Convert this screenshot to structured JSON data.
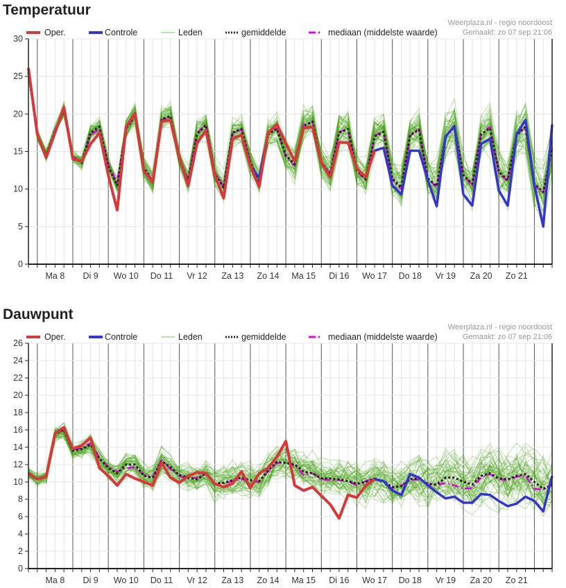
{
  "chart_data": [
    {
      "type": "line",
      "title": "Temperatuur",
      "source": "Weerplaza.nl - regio noordoost",
      "created": "Gemaakt: zo 07 sep 21:06",
      "legend": [
        "Oper.",
        "Controle",
        "Leden",
        "gemiddelde",
        "mediaan (middelste waarde)"
      ],
      "legend_position": "top",
      "ylim": [
        0,
        30
      ],
      "yticks": [
        0,
        5,
        10,
        15,
        20,
        25,
        30
      ],
      "ygrid_step": 5,
      "x_step": "6 uur",
      "day_labels": [
        "Ma 8",
        "Di 9",
        "Wo 10",
        "Do 11",
        "Vr 12",
        "Za 13",
        "Zo 14",
        "Ma 15",
        "Di 16",
        "Wo 17",
        "Do 18",
        "Vr 19",
        "Za 20",
        "Zo 21"
      ],
      "series": [
        {
          "name": "Oper.",
          "color": "#d43a3a",
          "values": [
            26.1,
            17.3,
            14.2,
            17.5,
            20.9,
            14.0,
            13.7,
            16.0,
            17.5,
            11.8,
            7.2,
            18.3,
            20.1,
            12.4,
            10.9,
            19.0,
            19.2,
            14.2,
            10.4,
            16.1,
            17.8,
            11.8,
            8.8,
            16.7,
            17.2,
            13.0,
            10.3,
            17.5,
            18.6,
            16.1,
            13.7,
            18.1,
            18.3,
            13.5,
            11.6,
            16.2,
            16.2,
            12.7,
            11.6,
            15.1
          ]
        },
        {
          "name": "Controle",
          "color": "#3535cc",
          "values": [
            26.1,
            17.3,
            14.2,
            17.5,
            20.9,
            14.0,
            13.7,
            16.0,
            17.5,
            11.8,
            7.2,
            18.3,
            20.1,
            12.4,
            10.9,
            19.0,
            19.2,
            14.2,
            10.4,
            16.1,
            17.8,
            11.8,
            8.8,
            16.7,
            17.2,
            13.0,
            11.5,
            17.5,
            18.6,
            16.1,
            13.7,
            18.1,
            18.3,
            13.5,
            11.6,
            16.2,
            16.2,
            12.7,
            11.6,
            15.1,
            15.5,
            10.5,
            9.3,
            15.1,
            15.1,
            11.2,
            7.7,
            17.0,
            18.4,
            9.3,
            7.8,
            16.0,
            16.7,
            9.8,
            7.8,
            17.3,
            19.2,
            10.5,
            5.0,
            18.6
          ]
        },
        {
          "name": "gemiddelde",
          "color": "#222222",
          "values": [
            25.5,
            17.2,
            14.5,
            17.8,
            20.5,
            14.2,
            13.5,
            17.5,
            18.3,
            13.0,
            10.5,
            18.0,
            19.8,
            12.8,
            11.0,
            19.3,
            19.7,
            14.0,
            11.0,
            17.3,
            18.5,
            12.0,
            10.2,
            17.5,
            18.0,
            13.5,
            11.0,
            17.3,
            18.0,
            14.5,
            13.3,
            18.4,
            19.0,
            13.5,
            12.0,
            17.5,
            18.0,
            12.5,
            11.3,
            17.0,
            17.6,
            11.4,
            10.2,
            17.2,
            17.9,
            11.4,
            10.4,
            17.0,
            18.4,
            11.8,
            10.7,
            17.3,
            18.1,
            12.3,
            11.2,
            17.2,
            18.3,
            10.7,
            9.6,
            15.5
          ]
        },
        {
          "name": "mediaan (middelste waarde)",
          "color": "#e000e0",
          "values": [
            25.6,
            17.2,
            14.4,
            17.9,
            20.4,
            14.3,
            13.6,
            17.2,
            18.0,
            13.2,
            10.9,
            18.1,
            19.7,
            12.9,
            11.1,
            19.2,
            19.5,
            14.1,
            11.2,
            17.5,
            18.6,
            12.2,
            10.3,
            17.4,
            17.9,
            13.6,
            11.1,
            17.4,
            18.1,
            14.3,
            13.1,
            18.6,
            18.9,
            13.6,
            12.1,
            17.6,
            18.0,
            12.4,
            11.2,
            17.1,
            17.7,
            11.2,
            10.0,
            17.1,
            18.1,
            11.5,
            10.2,
            16.9,
            18.2,
            11.9,
            10.4,
            17.2,
            18.3,
            12.1,
            11.0,
            17.3,
            18.2,
            10.5,
            9.4,
            15.3
          ]
        }
      ],
      "members": {
        "name": "Leden",
        "count": 50,
        "color": "#4aa21c",
        "spread": [
          0.8,
          3.5
        ]
      }
    },
    {
      "type": "line",
      "title": "Dauwpunt",
      "source": "Weerplaza.nl - regio noordoost",
      "created": "Gemaakt: zo 07 sep 21:06",
      "legend": [
        "Oper.",
        "Controle",
        "Leden",
        "gemiddelde",
        "mediaan (middelste waarde)"
      ],
      "legend_position": "top",
      "ylim": [
        0,
        26
      ],
      "yticks": [
        0,
        2,
        4,
        6,
        8,
        10,
        12,
        14,
        16,
        18,
        20,
        22,
        24,
        26
      ],
      "ygrid_step": 2,
      "x_step": "6 uur",
      "day_labels": [
        "Ma 8",
        "Di 9",
        "Wo 10",
        "Do 11",
        "Vr 12",
        "Za 13",
        "Zo 14",
        "Ma 15",
        "Di 16",
        "Wo 17",
        "Do 18",
        "Vr 19",
        "Za 20",
        "Zo 21"
      ],
      "series": [
        {
          "name": "Oper.",
          "color": "#d43a3a",
          "values": [
            11.0,
            10.3,
            10.6,
            15.6,
            16.3,
            13.8,
            14.2,
            15.1,
            11.6,
            10.7,
            9.6,
            10.9,
            10.4,
            10.0,
            9.6,
            12.2,
            10.5,
            9.9,
            10.7,
            11.1,
            11.0,
            9.8,
            9.4,
            9.8,
            11.2,
            9.3,
            11.0,
            11.6,
            12.9,
            14.7,
            9.6,
            9.0,
            9.4,
            8.4,
            7.4,
            5.8,
            8.5,
            8.2,
            9.6,
            10.3
          ]
        },
        {
          "name": "Controle",
          "color": "#3535cc",
          "values": [
            11.0,
            10.3,
            10.6,
            15.6,
            16.3,
            13.8,
            14.2,
            15.1,
            11.6,
            10.7,
            9.6,
            10.9,
            10.4,
            10.0,
            9.6,
            12.2,
            10.5,
            9.9,
            10.7,
            11.1,
            11.0,
            9.8,
            9.4,
            9.8,
            11.2,
            9.3,
            11.0,
            11.6,
            12.9,
            14.7,
            9.6,
            9.0,
            9.4,
            8.4,
            7.4,
            5.8,
            8.5,
            8.2,
            9.6,
            10.3,
            10.1,
            9.0,
            8.5,
            10.9,
            10.5,
            9.6,
            8.8,
            8.1,
            8.3,
            7.6,
            7.6,
            8.6,
            8.5,
            7.8,
            7.2,
            7.5,
            8.3,
            7.8,
            6.6,
            10.7
          ]
        },
        {
          "name": "gemiddelde",
          "color": "#222222",
          "values": [
            11.0,
            10.3,
            10.6,
            15.6,
            16.0,
            13.6,
            13.8,
            14.3,
            12.7,
            11.6,
            11.0,
            12.0,
            12.0,
            10.7,
            10.5,
            12.4,
            11.7,
            10.8,
            10.5,
            10.3,
            11.0,
            9.8,
            9.9,
            10.2,
            10.5,
            10.2,
            10.1,
            11.3,
            12.3,
            12.2,
            12.0,
            11.2,
            11.0,
            10.4,
            10.4,
            10.3,
            10.1,
            9.8,
            10.0,
            10.4,
            10.1,
            9.4,
            9.5,
            10.3,
            10.4,
            9.8,
            9.7,
            10.5,
            10.5,
            10.0,
            9.7,
            10.7,
            11.0,
            10.4,
            10.3,
            10.7,
            10.9,
            10.0,
            9.2,
            9.7
          ]
        },
        {
          "name": "mediaan (middelste waarde)",
          "color": "#e000e0",
          "values": [
            11.0,
            10.3,
            10.6,
            15.7,
            16.0,
            13.7,
            13.9,
            14.5,
            12.8,
            11.7,
            11.2,
            11.6,
            11.7,
            10.8,
            10.6,
            12.5,
            11.5,
            10.7,
            10.4,
            10.5,
            10.9,
            9.7,
            9.8,
            10.1,
            10.3,
            10.1,
            10.0,
            11.2,
            12.2,
            12.2,
            11.9,
            10.8,
            11.0,
            10.3,
            10.2,
            10.2,
            10.1,
            9.6,
            10.1,
            10.4,
            10.0,
            9.2,
            9.6,
            10.2,
            10.3,
            9.7,
            9.6,
            9.9,
            9.6,
            9.2,
            9.3,
            10.5,
            10.9,
            10.3,
            10.2,
            10.6,
            10.7,
            9.2,
            9.1,
            9.6
          ]
        }
      ],
      "members": {
        "name": "Leden",
        "count": 50,
        "color": "#4aa21c",
        "spread": [
          0.8,
          3.5
        ]
      }
    }
  ]
}
